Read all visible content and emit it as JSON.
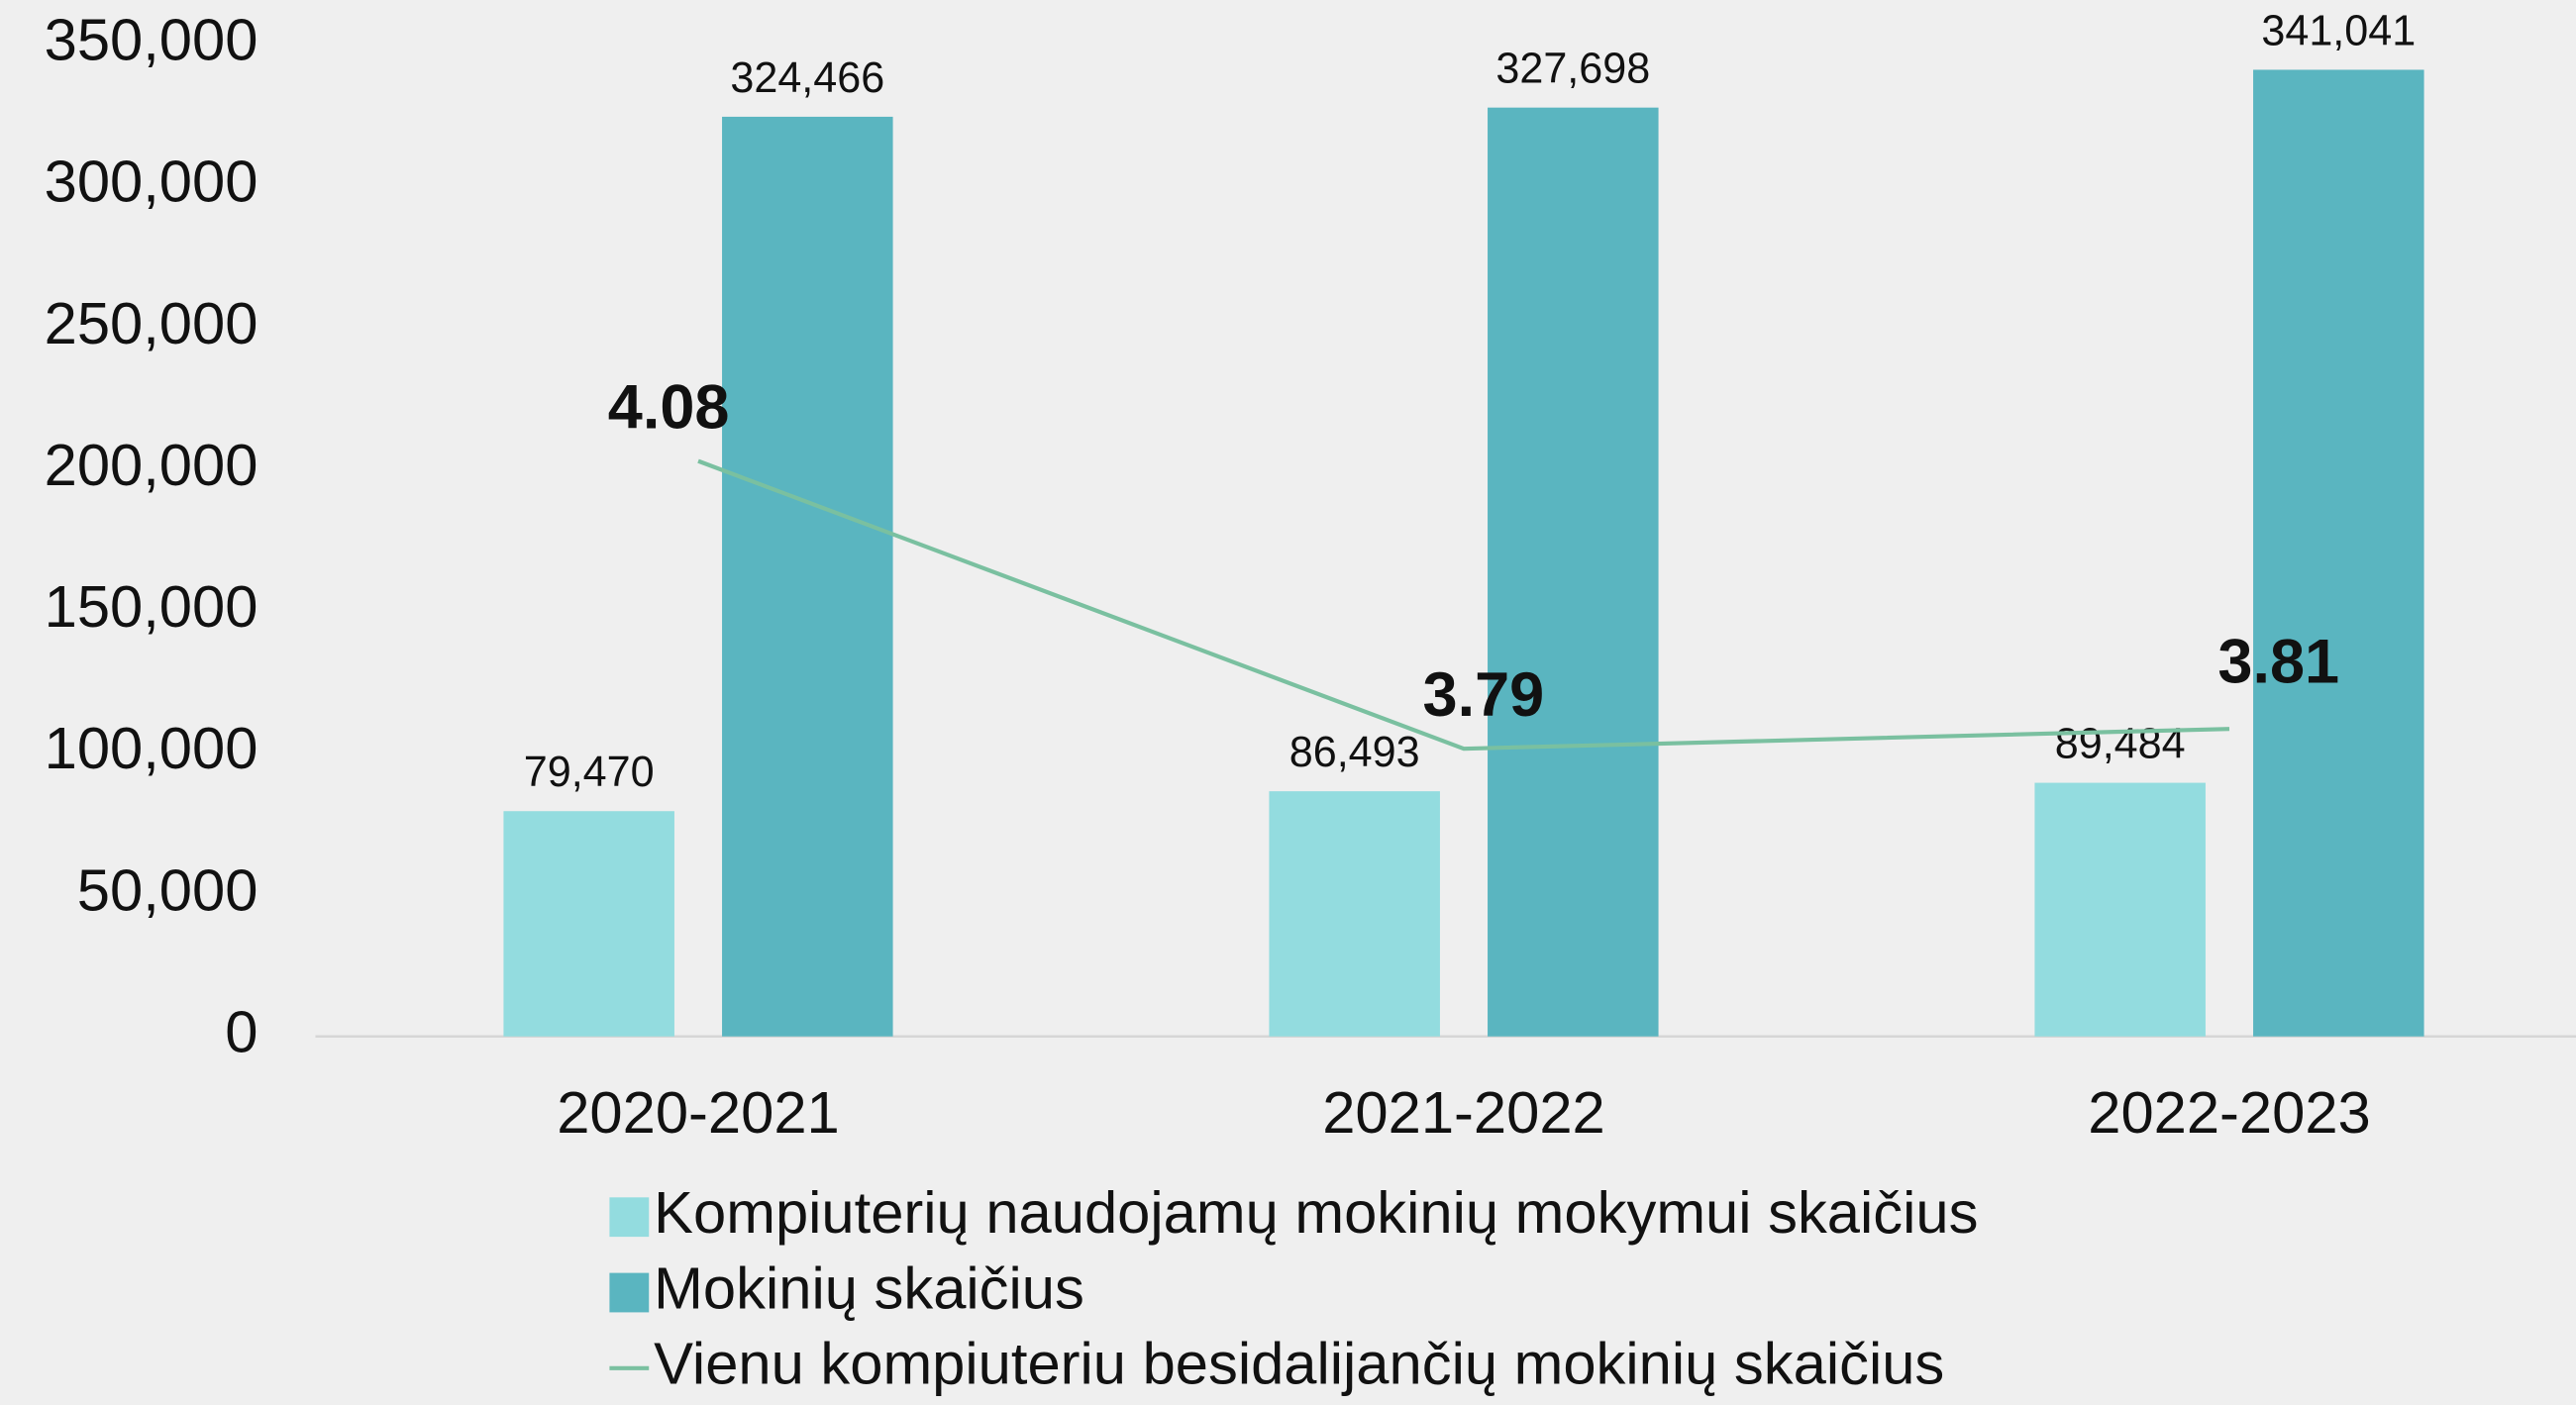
{
  "chart_data": {
    "type": "bar",
    "categories": [
      "2020-2021",
      "2021-2022",
      "2022-2023"
    ],
    "series": [
      {
        "name": "Kompiuterių naudojamų mokinių mokymui skaičius",
        "color": "#93dcdf",
        "values": [
          79470,
          86493,
          89484
        ],
        "value_labels": [
          "79,470",
          "86,493",
          "89,484"
        ]
      },
      {
        "name": "Mokinių skaičius",
        "color": "#5ab5c0",
        "values": [
          324466,
          327698,
          341041
        ],
        "value_labels": [
          "324,466",
          "327,698",
          "341,041"
        ]
      },
      {
        "name": "Vienu kompiuteriu besidalijančių mokinių skaičius",
        "type": "line",
        "axis": "y2",
        "color": "#7ac0a0",
        "values": [
          4.08,
          3.79,
          3.81
        ]
      }
    ],
    "ylim": [
      0,
      350000
    ],
    "yticks": [
      0,
      {
        "value": 50000,
        "label": "50,000"
      },
      {
        "value": 100000,
        "label": "100,000"
      },
      {
        "value": 150000,
        "label": "150,000"
      },
      {
        "value": 200000,
        "label": "200,000"
      },
      {
        "value": 250000,
        "label": "250,000"
      },
      {
        "value": 300000,
        "label": "300,000"
      },
      {
        "value": 350000,
        "label": "350,000"
      }
    ],
    "y2lim": [
      3.5,
      4.5
    ],
    "legend": "bottom"
  }
}
